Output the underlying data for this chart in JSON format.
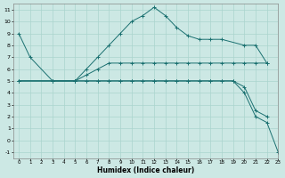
{
  "xlabel": "Humidex (Indice chaleur)",
  "bg_color": "#cce8e4",
  "grid_color": "#aad4ce",
  "line_color": "#1a7070",
  "xlim": [
    -0.5,
    23
  ],
  "ylim": [
    -1.5,
    11.5
  ],
  "xticks": [
    0,
    1,
    2,
    3,
    4,
    5,
    6,
    7,
    8,
    9,
    10,
    11,
    12,
    13,
    14,
    15,
    16,
    17,
    18,
    19,
    20,
    21,
    22,
    23
  ],
  "yticks": [
    -1,
    0,
    1,
    2,
    3,
    4,
    5,
    6,
    7,
    8,
    9,
    10,
    11
  ],
  "lines": [
    {
      "x": [
        0,
        1,
        3,
        5,
        6,
        7,
        8,
        9,
        10,
        11,
        12,
        13,
        14,
        15,
        16,
        17,
        18,
        20,
        21,
        22
      ],
      "y": [
        9,
        7,
        5,
        5,
        6,
        7,
        8,
        9,
        10,
        10.5,
        11.2,
        10.5,
        9.5,
        8.8,
        8.5,
        8.5,
        8.5,
        8.0,
        8.0,
        6.5
      ]
    },
    {
      "x": [
        0,
        3,
        5,
        6,
        7,
        8,
        9,
        10,
        11,
        12,
        13,
        14,
        15,
        16,
        17,
        18,
        19,
        20,
        21,
        22
      ],
      "y": [
        5,
        5,
        5,
        5.5,
        6,
        6.5,
        6.5,
        6.5,
        6.5,
        6.5,
        6.5,
        6.5,
        6.5,
        6.5,
        6.5,
        6.5,
        6.5,
        6.5,
        6.5,
        6.5
      ]
    },
    {
      "x": [
        0,
        3,
        5,
        6,
        7,
        8,
        9,
        10,
        11,
        12,
        13,
        14,
        15,
        16,
        17,
        18,
        19,
        20,
        21,
        22
      ],
      "y": [
        5,
        5,
        5,
        5,
        5,
        5,
        5,
        5,
        5,
        5,
        5,
        5,
        5,
        5,
        5,
        5,
        5,
        4.5,
        2.5,
        2.0
      ]
    },
    {
      "x": [
        0,
        3,
        5,
        6,
        7,
        8,
        9,
        10,
        11,
        12,
        13,
        14,
        15,
        16,
        17,
        18,
        19,
        20,
        21,
        22,
        23
      ],
      "y": [
        5,
        5,
        5,
        5,
        5,
        5,
        5,
        5,
        5,
        5,
        5,
        5,
        5,
        5,
        5,
        5,
        5,
        4.0,
        2.0,
        1.5,
        -1.0
      ]
    }
  ]
}
